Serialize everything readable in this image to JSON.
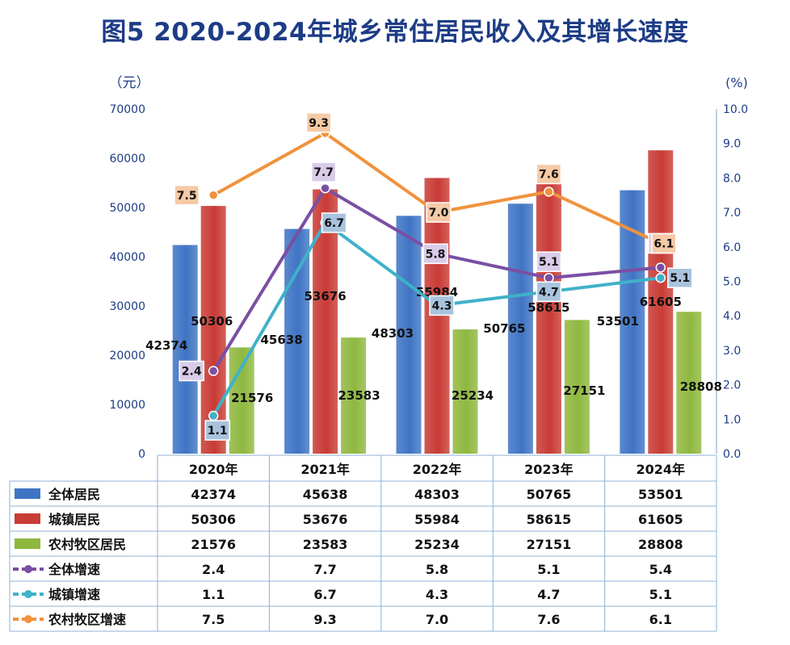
{
  "title": "图5  2020-2024年城乡常住居民收入及其增长速度",
  "chart_data": {
    "type": "bar",
    "title": "图5  2020-2024年城乡常住居民收入及其增长速度",
    "left_unit": "（元）",
    "right_unit": "(%)",
    "categories": [
      "2020年",
      "2021年",
      "2022年",
      "2023年",
      "2024年"
    ],
    "ylim": [
      0,
      70000
    ],
    "yticks": [
      "0",
      "10000",
      "20000",
      "30000",
      "40000",
      "50000",
      "60000",
      "70000"
    ],
    "y2lim": [
      0,
      10
    ],
    "y2ticks": [
      "0.0",
      "1.0",
      "2.0",
      "3.0",
      "4.0",
      "5.0",
      "6.0",
      "7.0",
      "8.0",
      "9.0",
      "10.0"
    ],
    "grid": false,
    "legend": "data-table",
    "bar_series": [
      {
        "name": "全体居民",
        "values": [
          42374,
          45638,
          48303,
          50765,
          53501
        ],
        "color": "#3f74c4"
      },
      {
        "name": "城镇居民",
        "values": [
          50306,
          53676,
          55984,
          58615,
          61605
        ],
        "color": "#c93b35"
      },
      {
        "name": "农村牧区居民",
        "values": [
          21576,
          23583,
          25234,
          27151,
          28808
        ],
        "color": "#8fb83f"
      }
    ],
    "line_series": [
      {
        "name": "全体增速",
        "values": [
          2.4,
          7.7,
          5.8,
          5.1,
          5.4
        ],
        "labels": [
          "2.4",
          "7.7",
          "5.8",
          "5.1",
          "5.4"
        ],
        "color": "#7a4fa3",
        "box": "#d9cce8"
      },
      {
        "name": "城镇增速",
        "values": [
          1.1,
          6.7,
          4.3,
          4.7,
          5.1
        ],
        "labels": [
          "1.1",
          "6.7",
          "4.3",
          "4.7",
          "5.1"
        ],
        "color": "#3fb2c8",
        "box": "#a9c3de"
      },
      {
        "name": "农村牧区增速",
        "values": [
          7.5,
          9.3,
          7.0,
          7.6,
          6.1
        ],
        "labels": [
          "7.5",
          "9.3",
          "7.0",
          "7.6",
          "6.1"
        ],
        "color": "#f0923d",
        "box": "#f6caa6"
      }
    ]
  }
}
